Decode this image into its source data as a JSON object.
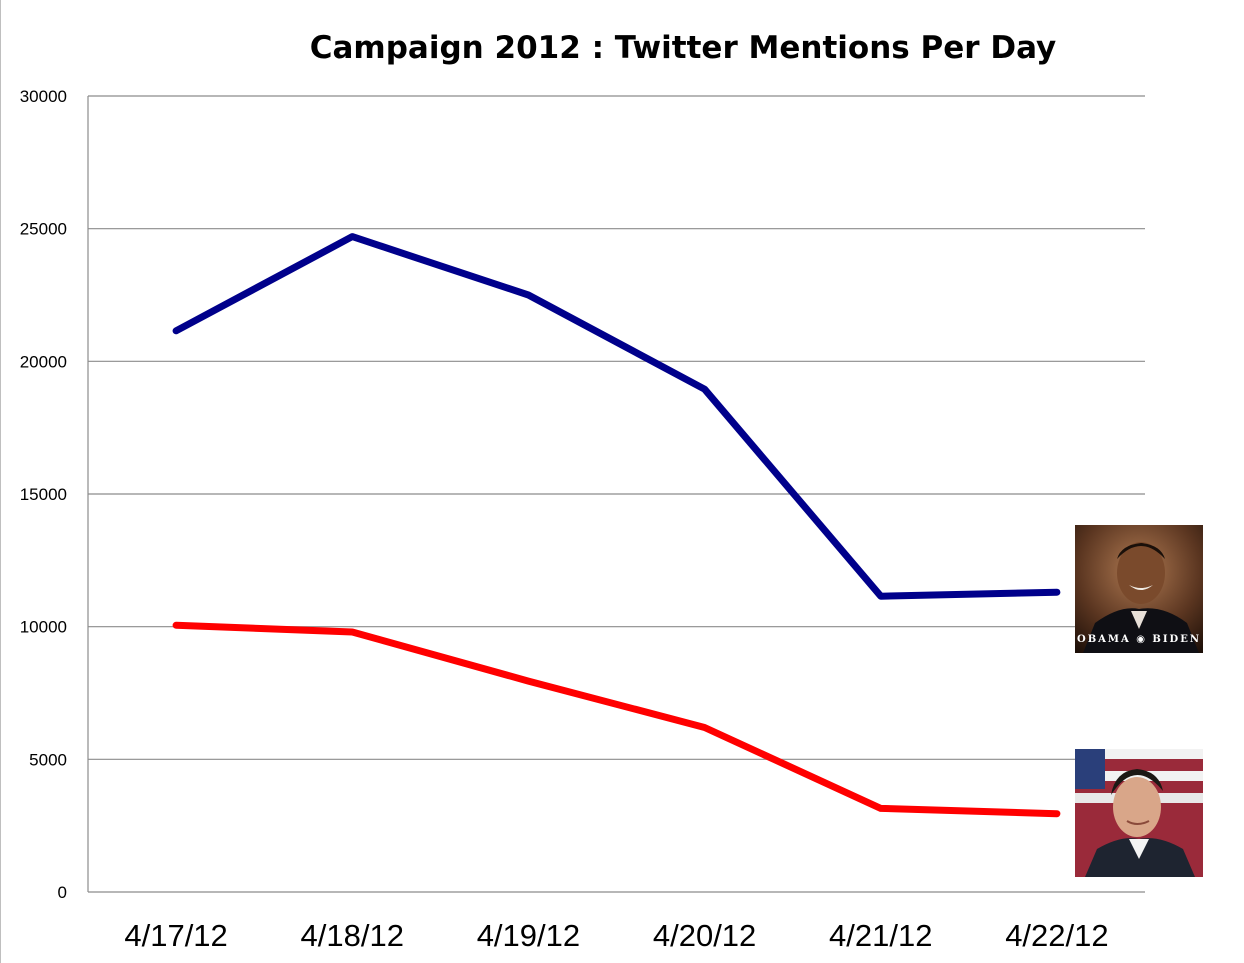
{
  "chart_data": {
    "type": "line",
    "title": "Campaign 2012 : Twitter Mentions Per Day",
    "xlabel": "",
    "ylabel": "",
    "categories": [
      "4/17/12",
      "4/18/12",
      "4/19/12",
      "4/20/12",
      "4/21/12",
      "4/22/12"
    ],
    "ylim": [
      0,
      30000
    ],
    "yticks": [
      0,
      5000,
      10000,
      15000,
      20000,
      25000,
      30000
    ],
    "grid": true,
    "legend": "images-at-right",
    "series": [
      {
        "color": "#00008b",
        "values": [
          21150,
          24700,
          22500,
          18950,
          11150,
          11300
        ]
      },
      {
        "color": "#ff0000",
        "values": [
          10050,
          9800,
          7950,
          6200,
          3150,
          2950
        ]
      }
    ]
  },
  "legend_images": [
    {
      "icon": "obama-biden-portrait",
      "caption": "OBAMA ◉ BIDEN"
    },
    {
      "icon": "romney-portrait",
      "caption": ""
    }
  ]
}
